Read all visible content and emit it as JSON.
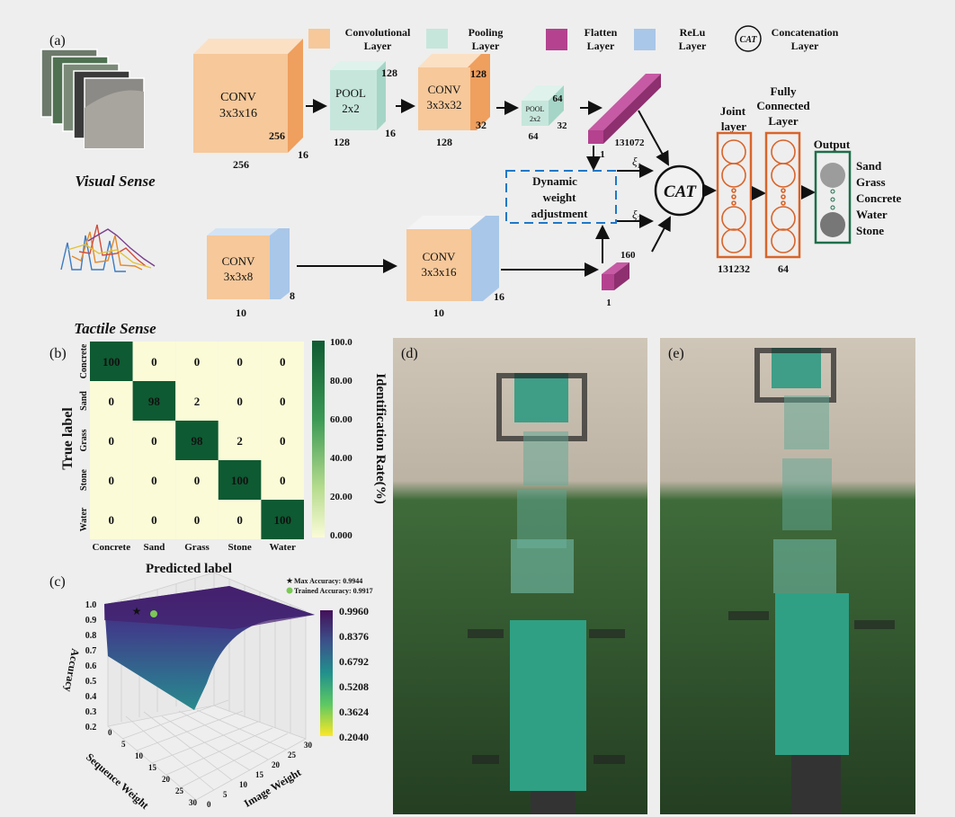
{
  "panel_labels": {
    "a": "(a)",
    "b": "(b)",
    "c": "(c)",
    "d": "(d)",
    "e": "(e)"
  },
  "legend": {
    "conv": [
      "Convolutional",
      "Layer"
    ],
    "pool": [
      "Pooling",
      "Layer"
    ],
    "flatten": [
      "Flatten",
      "Layer"
    ],
    "relu": [
      "ReLu",
      "Layer"
    ],
    "cat_symbol": "CAT",
    "cat": [
      "Concatenation",
      "Layer"
    ]
  },
  "colors": {
    "conv": "#f6c89a",
    "pool": "#c6e6dc",
    "flatten": "#b4428f",
    "relu": "#a9c7e8",
    "layer_box": "#d9642a",
    "output_box": "#1e6e4a",
    "dashed": "#1f78c8",
    "cm_high": "#0e5a32"
  },
  "visual": {
    "label": "Visual Sense",
    "conv1": {
      "name": "CONV",
      "kernel": "3x3x16",
      "w": "256",
      "h": "256",
      "d": "16"
    },
    "pool1": {
      "name": "POOL",
      "kernel": "2x2",
      "w": "128",
      "h": "128",
      "d": "16"
    },
    "conv2": {
      "name": "CONV",
      "kernel": "3x3x32",
      "w": "128",
      "h": "128",
      "d": "32"
    },
    "pool2": {
      "name": "POOL",
      "kernel": "2x2",
      "w": "64",
      "h": "64",
      "d": "32"
    },
    "flatten": {
      "len": "131072",
      "one": "1"
    }
  },
  "tactile": {
    "label": "Tactile Sense",
    "conv1": {
      "name": "CONV",
      "kernel": "3x3x8",
      "w": "10",
      "d": "8"
    },
    "conv2": {
      "name": "CONV",
      "kernel": "3x3x16",
      "w": "10",
      "d": "16"
    },
    "flatten": {
      "len": "160",
      "one": "1"
    }
  },
  "fusion": {
    "dynamic": [
      "Dynamic",
      "weight",
      "adjustment"
    ],
    "xi1": "ξ",
    "xi1_sub": "1",
    "xi2": "ξ",
    "xi2_sub": "2",
    "cat": "CAT",
    "joint": {
      "title": [
        "Joint",
        "layer"
      ],
      "size": "131232"
    },
    "fc": {
      "title": [
        "Fully",
        "Connected",
        "Layer"
      ],
      "size": "64"
    },
    "output": {
      "title": "Output",
      "classes": [
        "Sand",
        "Grass",
        "Concrete",
        "Water",
        "Stone"
      ]
    }
  },
  "chart_data": [
    {
      "type": "heatmap",
      "xlabel": "Predicted label",
      "ylabel": "True label",
      "x_categories": [
        "Concrete",
        "Sand",
        "Grass",
        "Stone",
        "Water"
      ],
      "y_categories": [
        "Concrete",
        "Sand",
        "Grass",
        "Stone",
        "Water"
      ],
      "values": [
        [
          100,
          0,
          0,
          0,
          0
        ],
        [
          0,
          98,
          2,
          0,
          0
        ],
        [
          0,
          0,
          98,
          2,
          0
        ],
        [
          0,
          0,
          0,
          100,
          0
        ],
        [
          0,
          0,
          0,
          0,
          100
        ]
      ],
      "colorbar": {
        "label": "Identification Rate(%)",
        "ticks": [
          "100.0",
          "80.00",
          "60.00",
          "40.00",
          "20.00",
          "0.000"
        ],
        "range": [
          0,
          100
        ]
      }
    },
    {
      "type": "surface",
      "xlabel": "Sequence Weight",
      "ylabel": "Image Weight",
      "zlabel": "Accuracy",
      "x_ticks": [
        "0",
        "5",
        "10",
        "15",
        "20",
        "25",
        "30"
      ],
      "y_ticks": [
        "0",
        "5",
        "10",
        "15",
        "20",
        "25",
        "30"
      ],
      "z_ticks": [
        "1.0",
        "0.9",
        "0.8",
        "0.7",
        "0.6",
        "0.5",
        "0.4",
        "0.3",
        "0.2"
      ],
      "zlim": [
        0.2,
        1.0
      ],
      "colorbar": {
        "ticks": [
          "0.9960",
          "0.8376",
          "0.6792",
          "0.5208",
          "0.3624",
          "0.2040"
        ],
        "range": [
          0.204,
          0.996
        ],
        "colormap": "viridis"
      },
      "annotations": [
        {
          "label": "Max Accuracy: 0.9944",
          "marker": "star",
          "color": "#e07b39",
          "value": 0.9944
        },
        {
          "label": "Trained Accuracy: 0.9917",
          "marker": "circle",
          "color": "#7cc858",
          "value": 0.9917
        }
      ]
    }
  ]
}
